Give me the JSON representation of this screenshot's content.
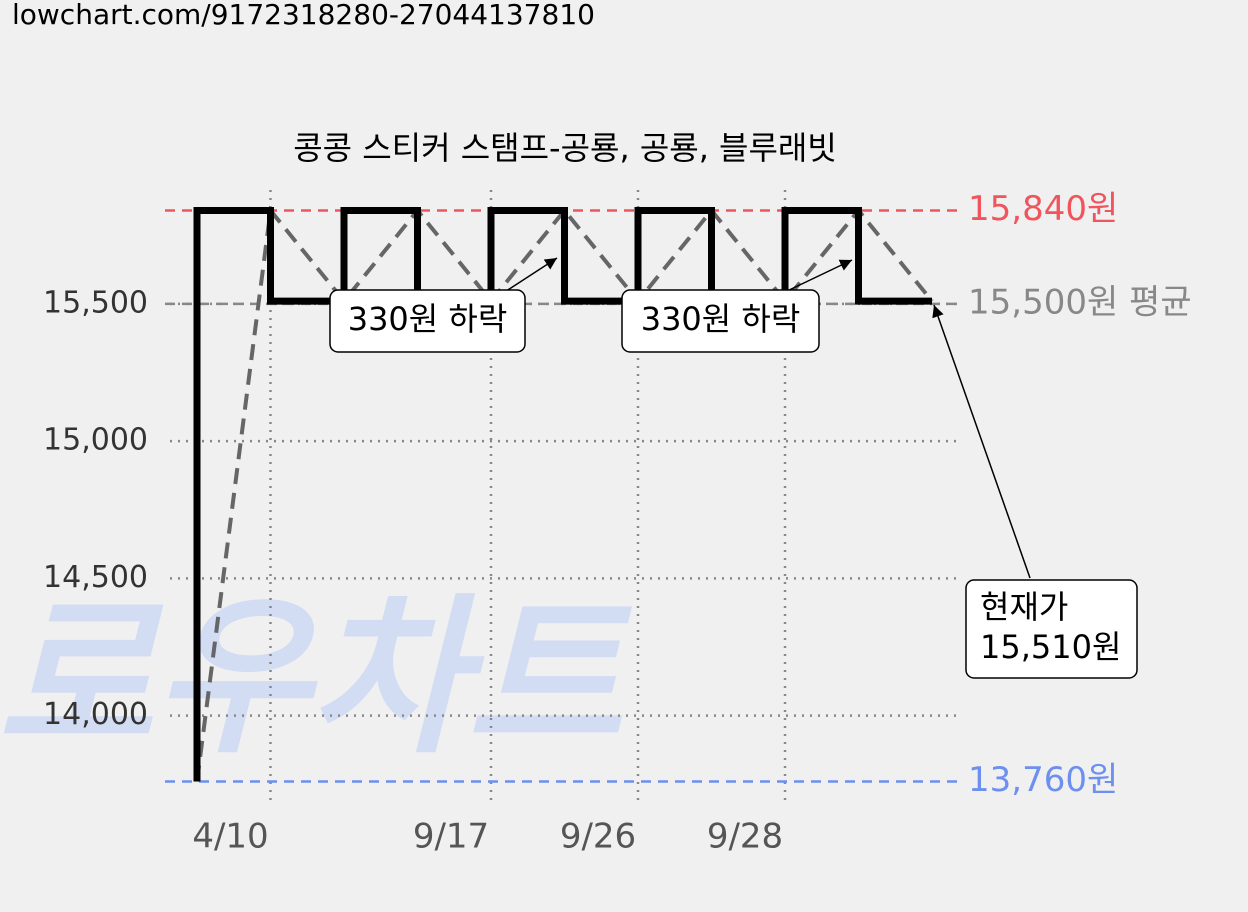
{
  "url": "lowchart.com/9172318280-27044137810",
  "chart_data": {
    "type": "step-line",
    "title": "콩콩 스티커 스탬프-공룡, 공룡, 블루래빗",
    "watermark": "로우차트",
    "categories": [
      null,
      "4/10",
      null,
      null,
      "9/17",
      null,
      "9/26",
      null,
      "9/28",
      null,
      null
    ],
    "series": [
      {
        "color": "#000000",
        "values": [
          13760,
          15840,
          15510,
          15840,
          15510,
          15840,
          15510,
          15840,
          15510,
          15840,
          15510
        ]
      }
    ],
    "ylim": [
      13700,
      15900
    ],
    "yticks": [
      {
        "value": 14000,
        "label": "14,000"
      },
      {
        "value": 14500,
        "label": "14,500"
      },
      {
        "value": 15000,
        "label": "15,000"
      },
      {
        "value": 15500,
        "label": "15,500"
      }
    ],
    "grid": true,
    "reference_lines": [
      {
        "value": 15840,
        "label": "15,840원",
        "color": "#f0545c"
      },
      {
        "value": 15500,
        "label": "15,500원 평균",
        "color": "#888888"
      },
      {
        "value": 13760,
        "label": "13,760원",
        "color": "#6d8ff0"
      }
    ],
    "annotations": [
      {
        "lines": [
          "330원 하락"
        ]
      },
      {
        "lines": [
          "330원 하락"
        ]
      },
      {
        "lines": [
          "현재가",
          "15,510원"
        ]
      }
    ]
  }
}
